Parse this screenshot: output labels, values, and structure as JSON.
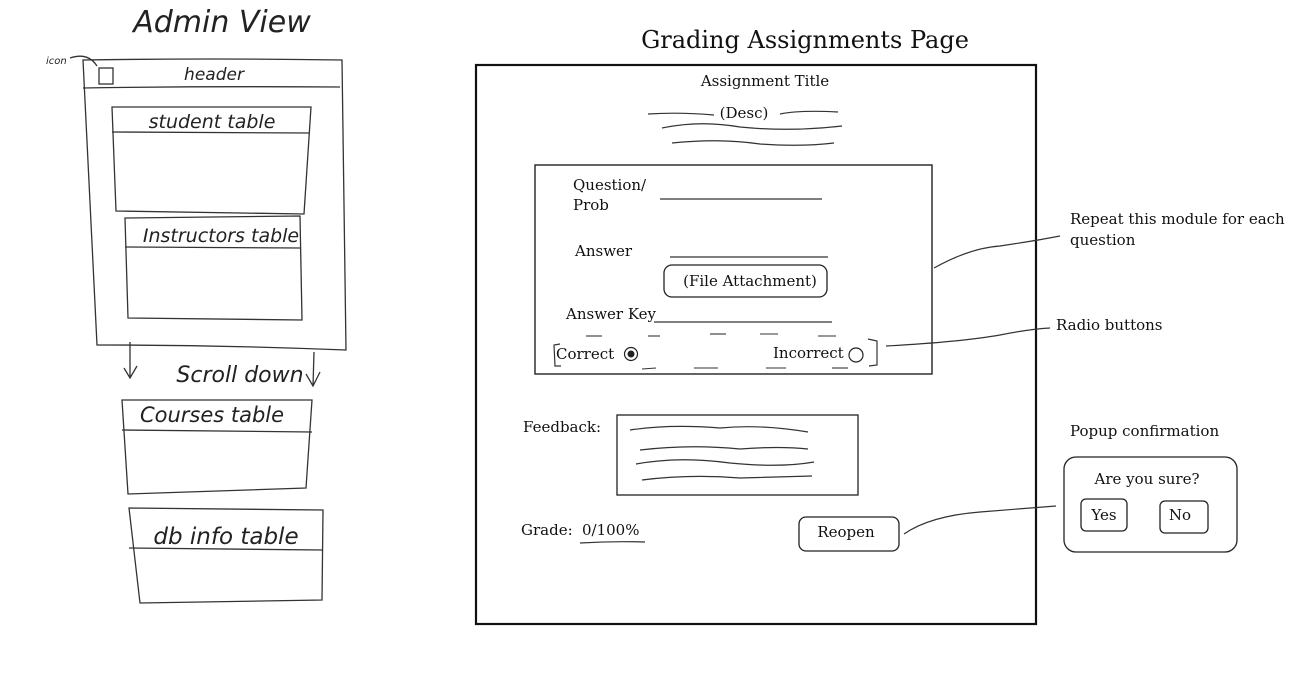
{
  "admin_view": {
    "title": "Admin View",
    "icon_label": "icon",
    "header_label": "header",
    "tables": [
      "student table",
      "Instructors table",
      "Courses table",
      "db info table"
    ],
    "scroll_label": "Scroll down"
  },
  "grading_page": {
    "title": "Grading Assignments Page",
    "assignment_title": "Assignment Title",
    "desc": "(Desc)",
    "question_label_line1": "Question/",
    "question_label_line2": "Prob",
    "answer_label": "Answer",
    "file_attachment": "(File Attachment)",
    "answer_key_label": "Answer Key",
    "correct_label": "Correct",
    "incorrect_label": "Incorrect",
    "feedback_label": "Feedback:",
    "grade_label": "Grade:",
    "grade_value": "0/100%",
    "reopen_button": "Reopen"
  },
  "annotations": {
    "repeat_line1": "Repeat this module for each",
    "repeat_line2": "question",
    "radio_buttons": "Radio buttons",
    "popup_confirmation": "Popup confirmation"
  },
  "popup": {
    "question": "Are you sure?",
    "yes": "Yes",
    "no": "No"
  }
}
